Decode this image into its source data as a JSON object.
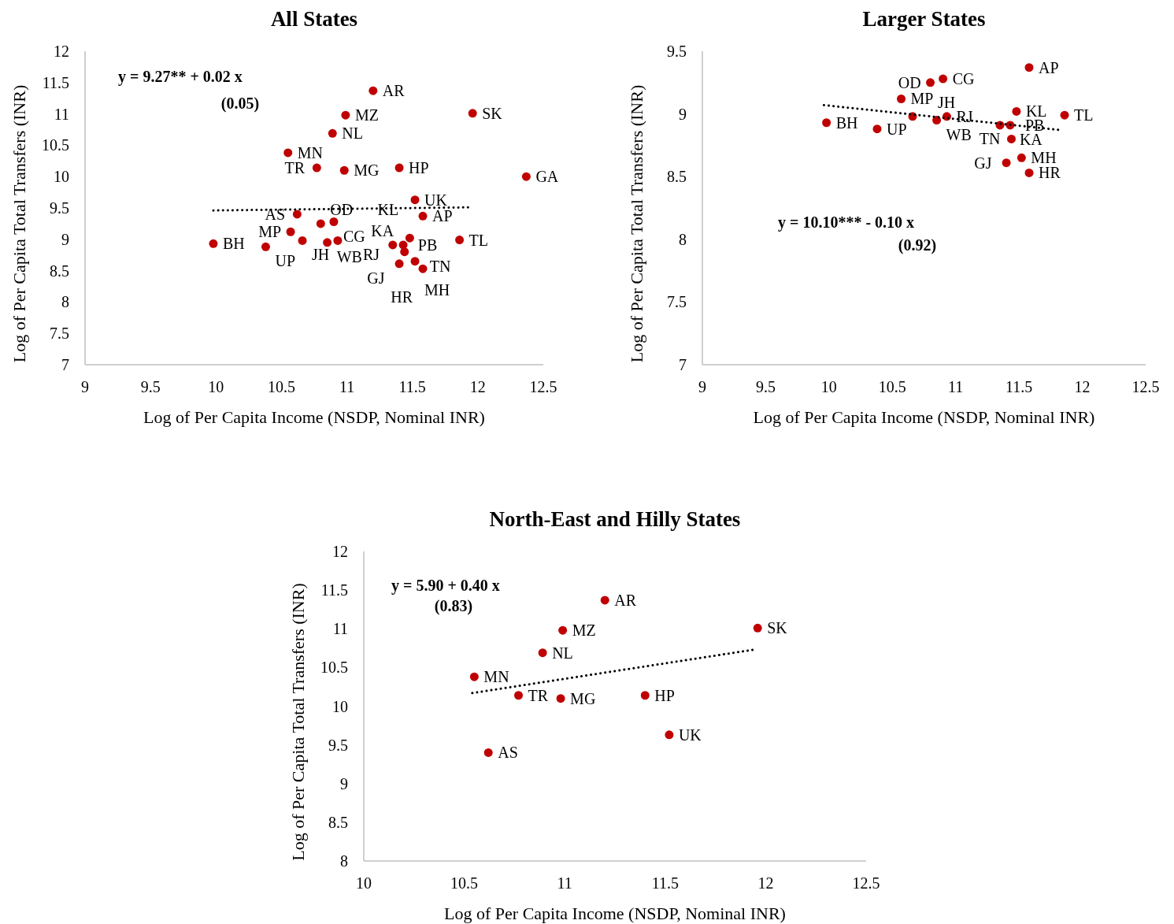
{
  "chart_data": [
    {
      "type": "scatter",
      "title": "All States",
      "xlabel": "Log of Per Capita Income (NSDP, Nominal INR)",
      "ylabel": "Log of Per Capita Total Transfers (INR)",
      "xlim": [
        9,
        12.5
      ],
      "ylim": [
        7,
        12
      ],
      "xticks": [
        9,
        9.5,
        10,
        10.5,
        11,
        11.5,
        12,
        12.5
      ],
      "yticks": [
        7,
        7.5,
        8,
        8.5,
        9,
        9.5,
        10,
        10.5,
        11,
        11.5,
        12
      ],
      "marker": "circle",
      "annotations": [
        "y = 9.27** + 0.02 x",
        "(0.05)"
      ],
      "series": [
        {
          "color": "#c00000",
          "x": [
            11.2,
            10.99,
            10.89,
            10.55,
            10.77,
            10.98,
            11.4,
            11.96,
            12.37,
            11.52,
            11.58,
            10.62,
            10.8,
            10.9,
            10.57,
            9.98,
            10.38,
            10.66,
            10.85,
            10.93,
            11.35,
            11.43,
            11.44,
            11.48,
            11.86,
            11.4,
            11.52,
            11.58
          ],
          "values": [
            11.37,
            10.98,
            10.69,
            10.38,
            10.14,
            10.1,
            10.14,
            11.01,
            10.0,
            9.63,
            9.37,
            9.4,
            9.25,
            9.28,
            9.12,
            8.93,
            8.88,
            8.98,
            8.95,
            8.98,
            8.91,
            8.91,
            8.8,
            9.02,
            8.99,
            8.61,
            8.65,
            8.53
          ],
          "value_labels": [
            "AR",
            "MZ",
            "NL",
            "MN",
            "TR",
            "MG",
            "HP",
            "SK",
            "GA",
            "UK",
            "AP",
            "AS",
            "OD",
            "CG",
            "MP",
            "BH",
            "UP",
            "JH",
            "WB",
            "RJ",
            "PB",
            "KA",
            "TN",
            "KL",
            "TL",
            "GJ",
            "MH",
            "HR"
          ]
        },
        {
          "type": "line",
          "color": "#000000",
          "line_style": "dotted",
          "marker": "none",
          "x": [
            9.98,
            11.94
          ],
          "values": [
            9.46,
            9.51
          ]
        }
      ]
    },
    {
      "type": "scatter",
      "title": "Larger States",
      "xlabel": "Log of Per Capita Income (NSDP, Nominal INR)",
      "ylabel": "Log of Per Capita Total Transfers (INR)",
      "xlim": [
        9,
        12.5
      ],
      "ylim": [
        7,
        9.5
      ],
      "xticks": [
        9,
        9.5,
        10,
        10.5,
        11,
        11.5,
        12,
        12.5
      ],
      "yticks": [
        7,
        7.5,
        8,
        8.5,
        9,
        9.5
      ],
      "marker": "circle",
      "annotations": [
        "y = 10.10*** - 0.10 x",
        "(0.92)"
      ],
      "series": [
        {
          "color": "#c00000",
          "x": [
            11.58,
            10.9,
            10.8,
            10.57,
            11.48,
            11.86,
            9.98,
            10.38,
            10.66,
            10.85,
            10.93,
            11.35,
            11.43,
            11.44,
            11.4,
            11.52,
            11.58
          ],
          "values": [
            9.37,
            9.28,
            9.25,
            9.12,
            9.02,
            8.99,
            8.93,
            8.88,
            8.98,
            8.95,
            8.98,
            8.91,
            8.91,
            8.8,
            8.61,
            8.65,
            8.53
          ],
          "value_labels": [
            "AP",
            "CG",
            "OD",
            "MP",
            "KL",
            "TL",
            "BH",
            "UP",
            "JH",
            "WB",
            "RJ",
            "PB",
            "KA",
            "TN",
            "GJ",
            "MH",
            "HR"
          ]
        },
        {
          "type": "line",
          "color": "#000000",
          "line_style": "dotted",
          "marker": "none",
          "x": [
            9.96,
            11.84
          ],
          "values": [
            9.07,
            8.87
          ]
        }
      ]
    },
    {
      "type": "scatter",
      "title": "North-East and Hilly States",
      "xlabel": "Log of Per Capita Income (NSDP, Nominal INR)",
      "ylabel": "Log of Per Capita Total Transfers (INR)",
      "xlim": [
        10,
        12.5
      ],
      "ylim": [
        8,
        12
      ],
      "xticks": [
        10,
        10.5,
        11,
        11.5,
        12,
        12.5
      ],
      "yticks": [
        8,
        8.5,
        9,
        9.5,
        10,
        10.5,
        11,
        11.5,
        12
      ],
      "marker": "circle",
      "annotations": [
        "y = 5.90 + 0.40 x",
        "(0.83)"
      ],
      "series": [
        {
          "color": "#c00000",
          "x": [
            11.2,
            10.99,
            10.89,
            10.55,
            10.77,
            10.98,
            11.4,
            11.96,
            11.52,
            10.62
          ],
          "values": [
            11.37,
            10.98,
            10.69,
            10.38,
            10.14,
            10.1,
            10.14,
            11.01,
            9.63,
            9.4
          ],
          "value_labels": [
            "AR",
            "MZ",
            "NL",
            "MN",
            "TR",
            "MG",
            "HP",
            "SK",
            "UK",
            "AS"
          ]
        },
        {
          "type": "line",
          "color": "#000000",
          "line_style": "dotted",
          "marker": "none",
          "x": [
            10.54,
            11.94
          ],
          "values": [
            10.17,
            10.73
          ]
        }
      ]
    }
  ]
}
